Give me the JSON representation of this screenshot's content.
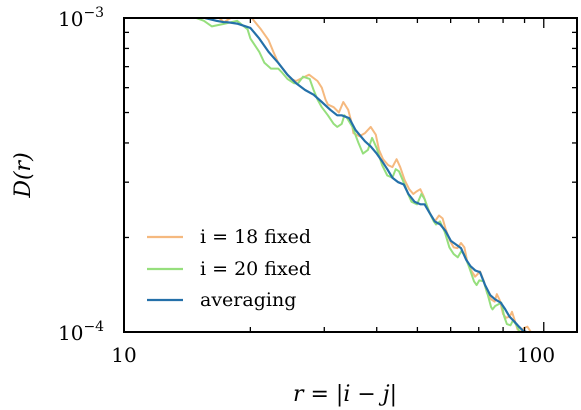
{
  "chart_data": {
    "type": "line",
    "title": "",
    "xlabel": "r = |i − j|",
    "ylabel": "D(r)",
    "xscale": "log",
    "yscale": "log",
    "xlim": [
      10,
      120
    ],
    "ylim": [
      0.0001,
      0.001
    ],
    "xticks": [
      {
        "value": 10,
        "label": "10"
      },
      {
        "value": 100,
        "label": "100"
      }
    ],
    "yticks": [
      {
        "value": 0.0001,
        "base": "10",
        "exp": "−4"
      },
      {
        "value": 0.001,
        "base": "10",
        "exp": "−3"
      }
    ],
    "grid": false,
    "legend": {
      "position": "lower-left"
    },
    "series": [
      {
        "name": "i = 18 fixed",
        "color": "#f5b97f",
        "x": [
          14.4,
          16.2,
          17.3,
          18.6,
          19.7,
          20.4,
          21.2,
          22.1,
          22.7,
          23.3,
          24.5,
          25.0,
          25.7,
          27.6,
          28.9,
          29.6,
          30.2,
          30.6,
          31.6,
          32.5,
          33.3,
          34.2,
          34.9,
          35.2,
          36.4,
          37.5,
          38.7,
          39.8,
          40.5,
          41.4,
          42.6,
          43.6,
          44.6,
          45.5,
          46.6,
          47.8,
          48.9,
          49.7,
          50.8,
          51.8,
          52.8,
          53.9,
          55.0,
          56.3,
          57.4,
          58.3,
          59.8,
          61.0,
          62.3,
          63.5,
          64.7,
          65.7,
          67.2,
          68.6,
          69.6,
          70.5,
          72.0,
          73.3,
          75.0,
          76.4,
          77.3,
          78.6,
          80.0,
          81.3,
          83.0,
          84.0,
          85.1,
          86.6,
          88.2,
          89.7,
          91.4,
          93.2
        ],
        "y": [
          0.00102,
          0.00105,
          0.00097,
          0.00103,
          0.00104,
          0.00098,
          0.00092,
          0.00085,
          0.00078,
          0.00072,
          0.00066,
          0.00064,
          0.00063,
          0.00066,
          0.00063,
          0.0006,
          0.00055,
          0.00053,
          0.00052,
          0.0005,
          0.00054,
          0.00051,
          0.00046,
          0.00043,
          0.00042,
          0.00043,
          0.00045,
          0.000425,
          0.00038,
          0.000355,
          0.00034,
          0.000335,
          0.000355,
          0.000335,
          0.000305,
          0.000285,
          0.000275,
          0.00028,
          0.000285,
          0.00027,
          0.00025,
          0.000235,
          0.000225,
          0.000235,
          0.00023,
          0.000214,
          0.000195,
          0.000186,
          0.000185,
          0.000192,
          0.000186,
          0.000168,
          0.000157,
          0.00015,
          0.000153,
          0.000156,
          0.000145,
          0.000133,
          0.000127,
          0.000125,
          0.000132,
          0.000126,
          0.000114,
          0.000111,
          0.000112,
          0.000116,
          0.00011,
          0.000102,
          0.0001,
          0.000103,
          0.000104,
          0.0001
        ]
      },
      {
        "name": "i = 20 fixed",
        "color": "#96df7d",
        "x": [
          14.0,
          15.5,
          16.2,
          17.4,
          18.6,
          19.7,
          20.0,
          21.0,
          21.6,
          22.4,
          23.3,
          23.8,
          24.5,
          25.4,
          26.0,
          26.7,
          27.7,
          28.3,
          28.9,
          29.6,
          30.6,
          31.6,
          32.2,
          33.0,
          33.5,
          34.0,
          35.0,
          36.2,
          37.1,
          38.1,
          39.0,
          40.0,
          41.2,
          42.4,
          43.6,
          44.4,
          45.2,
          46.6,
          47.5,
          48.4,
          49.9,
          51.1,
          52.0,
          53.4,
          54.7,
          55.4,
          56.6,
          58.1,
          59.6,
          61.0,
          62.4,
          63.6,
          64.7,
          66.3,
          68.2,
          69.2,
          70.2,
          71.9,
          73.6,
          74.9,
          75.5,
          76.6,
          79.2,
          80.5,
          81.7,
          83.3,
          84.5,
          86.1,
          87.6,
          89.0
        ],
        "y": [
          0.00103,
          0.00098,
          0.00094,
          0.00096,
          0.00098,
          0.00092,
          0.00086,
          0.00078,
          0.00072,
          0.00069,
          0.00069,
          0.00067,
          0.00064,
          0.00062,
          0.00062,
          0.00065,
          0.00064,
          0.00059,
          0.00055,
          0.00052,
          0.00049,
          0.00046,
          0.00045,
          0.00046,
          0.00049,
          0.00048,
          0.00045,
          0.0004,
          0.00037,
          0.00038,
          0.000415,
          0.000385,
          0.00034,
          0.000315,
          0.00031,
          0.00033,
          0.000325,
          0.000295,
          0.000275,
          0.00026,
          0.000255,
          0.000275,
          0.000265,
          0.00024,
          0.000225,
          0.00022,
          0.000225,
          0.000208,
          0.000186,
          0.000177,
          0.000173,
          0.000181,
          0.000176,
          0.000162,
          0.000145,
          0.000141,
          0.000146,
          0.000145,
          0.000131,
          0.00012,
          0.000118,
          0.000121,
          0.000124,
          0.000112,
          0.000106,
          0.000105,
          0.000109,
          0.000105,
          0.0001,
          0.0001
        ]
      },
      {
        "name": "averaging",
        "color": "#2470a9",
        "x": [
          15.6,
          16.6,
          17.3,
          17.6,
          18.6,
          20.0,
          21.0,
          22.1,
          23.3,
          24.5,
          25.7,
          27.0,
          28.3,
          29.6,
          31.0,
          32.2,
          33.0,
          34.4,
          35.6,
          37.5,
          38.7,
          40.0,
          41.2,
          42.4,
          43.6,
          45.0,
          46.4,
          47.6,
          49.2,
          50.8,
          52.0,
          53.4,
          55.0,
          56.7,
          58.3,
          60.1,
          61.8,
          63.5,
          65.3,
          66.9,
          68.7,
          70.5,
          72.5,
          74.6,
          76.6,
          79.0,
          81.0,
          82.8,
          85.1,
          87.3,
          89.2,
          90.9
        ],
        "y": [
          0.001,
          0.00098,
          0.00097,
          0.00097,
          0.00096,
          0.00093,
          0.00086,
          0.00078,
          0.00072,
          0.00066,
          0.00062,
          0.00059,
          0.00057,
          0.00054,
          0.00051,
          0.00049,
          0.00049,
          0.00048,
          0.00044,
          0.000405,
          0.00039,
          0.00037,
          0.00035,
          0.00033,
          0.00031,
          0.0003,
          0.000295,
          0.000275,
          0.00026,
          0.000255,
          0.000255,
          0.00024,
          0.000225,
          0.00022,
          0.00021,
          0.000195,
          0.00019,
          0.000185,
          0.00017,
          0.000162,
          0.000157,
          0.000155,
          0.000141,
          0.000131,
          0.000127,
          0.000124,
          0.000118,
          0.000112,
          0.000108,
          0.000104,
          0.000101,
          0.0001
        ]
      }
    ]
  }
}
